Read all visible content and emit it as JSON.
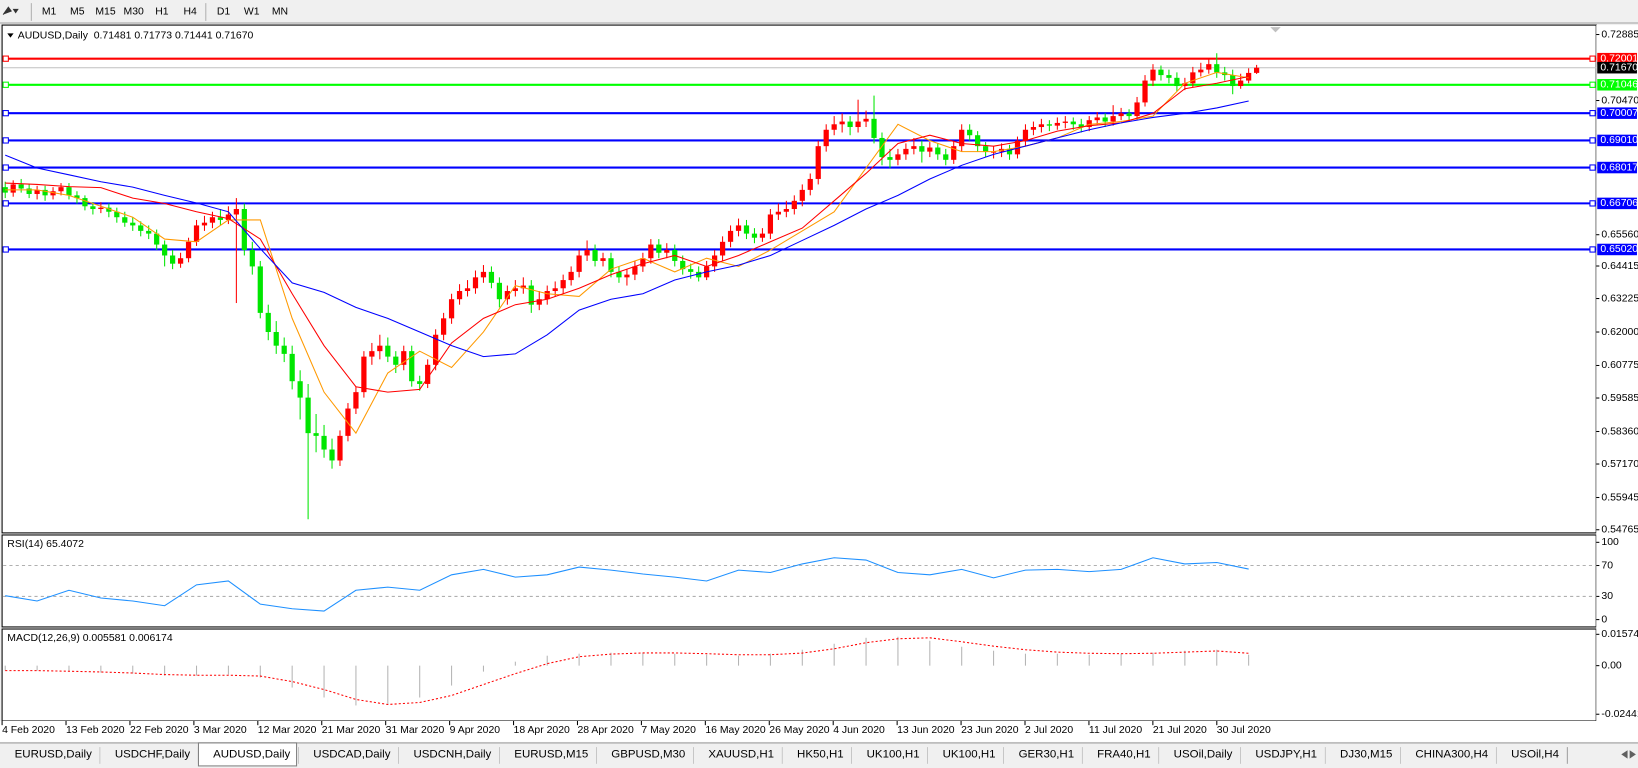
{
  "toolbar": {
    "timeframes": [
      "M1",
      "M5",
      "M15",
      "M30",
      "H1",
      "H4",
      "D1",
      "W1",
      "MN"
    ]
  },
  "chart_data": [
    {
      "type": "candlestick",
      "title": "AUDUSD,Daily  0.71481 0.71773 0.71441 0.71670",
      "up_color": "#ff0000",
      "down_color": "#00e600",
      "ylim": [
        0.5465,
        0.7323
      ],
      "yticks": [
        {
          "value": 0.72885,
          "label": "0.72885"
        },
        {
          "value": 0.7047,
          "label": "0.70470"
        },
        {
          "value": 0.6556,
          "label": "0.65560"
        },
        {
          "value": 0.64415,
          "label": "0.64415"
        },
        {
          "value": 0.63225,
          "label": "0.63225"
        },
        {
          "value": 0.62,
          "label": "0.62000"
        },
        {
          "value": 0.60775,
          "label": "0.60775"
        },
        {
          "value": 0.59585,
          "label": "0.59585"
        },
        {
          "value": 0.5836,
          "label": "0.58360"
        },
        {
          "value": 0.5717,
          "label": "0.57170"
        },
        {
          "value": 0.55945,
          "label": "0.55945"
        },
        {
          "value": 0.54765,
          "label": "0.54765"
        }
      ],
      "levels": [
        {
          "value": 0.72001,
          "label": "0.72001",
          "color": "#ff0000"
        },
        {
          "value": 0.71046,
          "label": "0.71046",
          "color": "#00ff00"
        },
        {
          "value": 0.70007,
          "label": "0.70007",
          "color": "#0000ff"
        },
        {
          "value": 0.6901,
          "label": "0.69010",
          "color": "#0000ff"
        },
        {
          "value": 0.68017,
          "label": "0.68017",
          "color": "#0000ff"
        },
        {
          "value": 0.66706,
          "label": "0.66706",
          "color": "#0000ff"
        },
        {
          "value": 0.6502,
          "label": "0.65020",
          "color": "#0000ff"
        }
      ],
      "last_price": {
        "value": 0.7167,
        "label": "0.71670"
      },
      "open": [
        0.673,
        0.671,
        0.674,
        0.6725,
        0.6705,
        0.672,
        0.67,
        0.6715,
        0.673,
        0.67,
        0.669,
        0.666,
        0.665,
        0.6655,
        0.664,
        0.662,
        0.66,
        0.659,
        0.657,
        0.656,
        0.652,
        0.648,
        0.645,
        0.647,
        0.653,
        0.659,
        0.66,
        0.662,
        0.661,
        0.663,
        0.665,
        0.65,
        0.644,
        0.627,
        0.62,
        0.615,
        0.612,
        0.602,
        0.596,
        0.583,
        0.582,
        0.577,
        0.573,
        0.582,
        0.592,
        0.598,
        0.611,
        0.613,
        0.615,
        0.611,
        0.608,
        0.613,
        0.602,
        0.601,
        0.608,
        0.619,
        0.625,
        0.632,
        0.635,
        0.636,
        0.64,
        0.642,
        0.638,
        0.632,
        0.635,
        0.636,
        0.637,
        0.63,
        0.632,
        0.635,
        0.636,
        0.639,
        0.642,
        0.648,
        0.65,
        0.646,
        0.647,
        0.642,
        0.64,
        0.641,
        0.644,
        0.647,
        0.652,
        0.649,
        0.65,
        0.646,
        0.643,
        0.642,
        0.64,
        0.644,
        0.648,
        0.653,
        0.657,
        0.659,
        0.656,
        0.6545,
        0.656,
        0.663,
        0.664,
        0.665,
        0.668,
        0.672,
        0.676,
        0.688,
        0.694,
        0.696,
        0.697,
        0.695,
        0.697,
        0.698,
        0.691,
        0.684,
        0.683,
        0.685,
        0.687,
        0.688,
        0.686,
        0.6875,
        0.685,
        0.683,
        0.688,
        0.694,
        0.692,
        0.688,
        0.686,
        0.686,
        0.687,
        0.685,
        0.69,
        0.694,
        0.695,
        0.696,
        0.6955,
        0.6965,
        0.697,
        0.696,
        0.695,
        0.6975,
        0.6985,
        0.697,
        0.699,
        0.7,
        0.699,
        0.704,
        0.712,
        0.716,
        0.714,
        0.713,
        0.71,
        0.711,
        0.715,
        0.716,
        0.718,
        0.715,
        0.714,
        0.71,
        0.712,
        0.71481
      ],
      "high": [
        0.675,
        0.6755,
        0.676,
        0.674,
        0.6735,
        0.6735,
        0.673,
        0.6745,
        0.6745,
        0.6715,
        0.67,
        0.6675,
        0.6675,
        0.667,
        0.6655,
        0.664,
        0.662,
        0.6605,
        0.659,
        0.6575,
        0.6535,
        0.65,
        0.649,
        0.6545,
        0.661,
        0.6625,
        0.664,
        0.665,
        0.666,
        0.669,
        0.667,
        0.653,
        0.646,
        0.63,
        0.624,
        0.618,
        0.615,
        0.606,
        0.601,
        0.59,
        0.586,
        0.581,
        0.584,
        0.594,
        0.6,
        0.613,
        0.616,
        0.619,
        0.618,
        0.613,
        0.615,
        0.615,
        0.604,
        0.61,
        0.621,
        0.627,
        0.634,
        0.6375,
        0.639,
        0.6425,
        0.6445,
        0.644,
        0.64,
        0.637,
        0.639,
        0.64,
        0.639,
        0.635,
        0.637,
        0.6385,
        0.641,
        0.644,
        0.65,
        0.6535,
        0.652,
        0.649,
        0.649,
        0.644,
        0.643,
        0.646,
        0.649,
        0.654,
        0.654,
        0.6525,
        0.652,
        0.648,
        0.645,
        0.644,
        0.646,
        0.65,
        0.655,
        0.659,
        0.6615,
        0.661,
        0.658,
        0.658,
        0.665,
        0.667,
        0.668,
        0.67,
        0.674,
        0.678,
        0.69,
        0.696,
        0.699,
        0.7,
        0.699,
        0.705,
        0.701,
        0.7065,
        0.693,
        0.687,
        0.687,
        0.689,
        0.691,
        0.69,
        0.6895,
        0.689,
        0.687,
        0.69,
        0.696,
        0.696,
        0.6935,
        0.6895,
        0.688,
        0.689,
        0.6885,
        0.6915,
        0.696,
        0.697,
        0.698,
        0.6975,
        0.6985,
        0.699,
        0.6985,
        0.698,
        0.699,
        0.7005,
        0.7,
        0.703,
        0.702,
        0.7015,
        0.706,
        0.714,
        0.718,
        0.7175,
        0.716,
        0.715,
        0.713,
        0.717,
        0.7185,
        0.72,
        0.722,
        0.717,
        0.716,
        0.7145,
        0.7165,
        0.71773
      ],
      "low": [
        0.669,
        0.6695,
        0.671,
        0.669,
        0.6685,
        0.668,
        0.6685,
        0.67,
        0.6685,
        0.667,
        0.6645,
        0.663,
        0.6635,
        0.662,
        0.66,
        0.6585,
        0.657,
        0.655,
        0.654,
        0.65,
        0.644,
        0.643,
        0.6435,
        0.6455,
        0.6515,
        0.657,
        0.658,
        0.659,
        0.6595,
        0.6306,
        0.648,
        0.641,
        0.625,
        0.617,
        0.612,
        0.609,
        0.599,
        0.588,
        0.5515,
        0.576,
        0.574,
        0.57,
        0.571,
        0.58,
        0.59,
        0.596,
        0.608,
        0.61,
        0.609,
        0.605,
        0.606,
        0.6,
        0.5985,
        0.5995,
        0.606,
        0.617,
        0.623,
        0.63,
        0.633,
        0.634,
        0.638,
        0.636,
        0.629,
        0.63,
        0.633,
        0.634,
        0.627,
        0.628,
        0.63,
        0.633,
        0.634,
        0.637,
        0.64,
        0.646,
        0.644,
        0.644,
        0.64,
        0.638,
        0.637,
        0.639,
        0.642,
        0.645,
        0.647,
        0.647,
        0.644,
        0.641,
        0.6395,
        0.6385,
        0.639,
        0.642,
        0.646,
        0.651,
        0.655,
        0.654,
        0.6525,
        0.653,
        0.654,
        0.661,
        0.662,
        0.663,
        0.666,
        0.67,
        0.674,
        0.686,
        0.692,
        0.693,
        0.692,
        0.693,
        0.695,
        0.689,
        0.681,
        0.68,
        0.681,
        0.683,
        0.685,
        0.682,
        0.684,
        0.683,
        0.681,
        0.6815,
        0.686,
        0.69,
        0.686,
        0.684,
        0.6835,
        0.684,
        0.683,
        0.6835,
        0.688,
        0.692,
        0.693,
        0.6935,
        0.694,
        0.6945,
        0.694,
        0.693,
        0.6935,
        0.696,
        0.695,
        0.6955,
        0.6975,
        0.697,
        0.6975,
        0.7025,
        0.71,
        0.712,
        0.711,
        0.708,
        0.7085,
        0.7095,
        0.7135,
        0.7145,
        0.713,
        0.712,
        0.707,
        0.709,
        0.711,
        0.71441
      ],
      "close": [
        0.671,
        0.674,
        0.6725,
        0.6705,
        0.672,
        0.67,
        0.6715,
        0.673,
        0.67,
        0.669,
        0.666,
        0.665,
        0.6655,
        0.664,
        0.662,
        0.66,
        0.659,
        0.657,
        0.656,
        0.652,
        0.648,
        0.645,
        0.647,
        0.653,
        0.659,
        0.66,
        0.662,
        0.661,
        0.663,
        0.665,
        0.65,
        0.644,
        0.627,
        0.62,
        0.615,
        0.612,
        0.602,
        0.596,
        0.583,
        0.582,
        0.577,
        0.573,
        0.582,
        0.592,
        0.598,
        0.611,
        0.613,
        0.615,
        0.611,
        0.608,
        0.613,
        0.602,
        0.601,
        0.608,
        0.619,
        0.625,
        0.632,
        0.635,
        0.636,
        0.64,
        0.642,
        0.638,
        0.632,
        0.635,
        0.636,
        0.637,
        0.63,
        0.632,
        0.635,
        0.636,
        0.639,
        0.642,
        0.648,
        0.65,
        0.646,
        0.647,
        0.642,
        0.64,
        0.641,
        0.644,
        0.647,
        0.652,
        0.649,
        0.65,
        0.646,
        0.643,
        0.642,
        0.64,
        0.644,
        0.648,
        0.653,
        0.657,
        0.659,
        0.656,
        0.6545,
        0.656,
        0.663,
        0.664,
        0.665,
        0.668,
        0.672,
        0.676,
        0.688,
        0.694,
        0.696,
        0.697,
        0.695,
        0.697,
        0.698,
        0.691,
        0.684,
        0.683,
        0.685,
        0.687,
        0.688,
        0.686,
        0.6875,
        0.685,
        0.683,
        0.688,
        0.694,
        0.692,
        0.688,
        0.686,
        0.686,
        0.687,
        0.685,
        0.69,
        0.694,
        0.695,
        0.696,
        0.6955,
        0.6965,
        0.697,
        0.696,
        0.695,
        0.6975,
        0.6985,
        0.697,
        0.699,
        0.7,
        0.699,
        0.704,
        0.712,
        0.716,
        0.714,
        0.713,
        0.71,
        0.711,
        0.715,
        0.716,
        0.718,
        0.715,
        0.714,
        0.71,
        0.712,
        0.7148,
        0.7167
      ],
      "series": [
        {
          "color": "#ff9900",
          "values": [
            0.672,
            0.672,
            0.67,
            0.666,
            0.662,
            0.654,
            0.653,
            0.661,
            0.661,
            0.625,
            0.598,
            0.583,
            0.605,
            0.613,
            0.607,
            0.62,
            0.637,
            0.634,
            0.633,
            0.643,
            0.647,
            0.642,
            0.647,
            0.644,
            0.65,
            0.657,
            0.664,
            0.68,
            0.696,
            0.69,
            0.686,
            0.686,
            0.688,
            0.691,
            0.696,
            0.697,
            0.699,
            0.711,
            0.715,
            0.713
          ]
        },
        {
          "color": "#ff0000",
          "values": [
            0.6745,
            0.674,
            0.6732,
            0.6728,
            0.669,
            0.667,
            0.664,
            0.6615,
            0.654,
            0.634,
            0.615,
            0.6,
            0.598,
            0.599,
            0.616,
            0.625,
            0.63,
            0.632,
            0.636,
            0.641,
            0.645,
            0.648,
            0.644,
            0.648,
            0.653,
            0.658,
            0.668,
            0.678,
            0.689,
            0.692,
            0.689,
            0.688,
            0.69,
            0.6935,
            0.6955,
            0.6965,
            0.7,
            0.709,
            0.711,
            0.7135
          ]
        },
        {
          "color": "#0000ff",
          "values": [
            0.6847,
            0.68,
            0.6775,
            0.675,
            0.673,
            0.67,
            0.6672,
            0.664,
            0.6505,
            0.638,
            0.6345,
            0.629,
            0.625,
            0.62,
            0.615,
            0.611,
            0.612,
            0.619,
            0.628,
            0.632,
            0.634,
            0.639,
            0.642,
            0.6445,
            0.648,
            0.6535,
            0.659,
            0.665,
            0.67,
            0.676,
            0.681,
            0.685,
            0.688,
            0.691,
            0.694,
            0.6965,
            0.6985,
            0.7,
            0.702,
            0.7045
          ]
        }
      ]
    },
    {
      "type": "line",
      "title": "RSI(14) 65.4072",
      "ylim": [
        -9.5,
        109.5
      ],
      "yticks": [
        100,
        70,
        30,
        0
      ],
      "dashed_levels": [
        70,
        30
      ],
      "series": [
        {
          "color": "#1e90ff",
          "values": [
            31,
            24,
            38,
            28,
            24,
            18,
            45,
            50,
            20,
            14,
            11,
            38,
            42,
            38,
            58,
            65,
            55,
            58,
            68,
            64,
            59,
            55,
            50,
            64,
            61,
            72,
            80,
            77,
            61,
            58,
            65,
            54,
            64,
            65,
            62,
            65,
            80,
            72,
            74,
            65.4
          ]
        }
      ]
    },
    {
      "type": "macd",
      "title": "MACD(12,26,9) 0.005581 0.006174",
      "ylim": [
        -0.0278,
        0.0184
      ],
      "yticks": [
        0.015741,
        {
          "value": 0,
          "label": "0.00"
        },
        -0.024412
      ],
      "histogram": {
        "color": "#b4b4b4",
        "values": [
          -0.0025,
          -0.0025,
          -0.003,
          -0.0035,
          -0.004,
          -0.005,
          -0.005,
          -0.0045,
          -0.006,
          -0.011,
          -0.016,
          -0.02,
          -0.0195,
          -0.016,
          -0.01,
          -0.003,
          0.002,
          0.005,
          0.006,
          0.0065,
          0.0065,
          0.006,
          0.0055,
          0.005,
          0.006,
          0.008,
          0.011,
          0.014,
          0.0145,
          0.0125,
          0.0095,
          0.0075,
          0.006,
          0.006,
          0.0055,
          0.006,
          0.0065,
          0.0075,
          0.008,
          0.0055
        ]
      },
      "signal": {
        "color": "#ff0000",
        "values": [
          -0.0025,
          -0.0025,
          -0.0028,
          -0.0032,
          -0.0037,
          -0.0045,
          -0.0048,
          -0.0048,
          -0.0052,
          -0.008,
          -0.012,
          -0.017,
          -0.0195,
          -0.0185,
          -0.015,
          -0.0095,
          -0.004,
          0.001,
          0.0045,
          0.0058,
          0.0064,
          0.0064,
          0.006,
          0.0055,
          0.0055,
          0.0063,
          0.0085,
          0.0115,
          0.0135,
          0.014,
          0.012,
          0.0098,
          0.008,
          0.0068,
          0.0062,
          0.006,
          0.0062,
          0.0068,
          0.0074,
          0.0062
        ]
      }
    }
  ],
  "time_axis": [
    "4 Feb 2020",
    "13 Feb 2020",
    "22 Feb 2020",
    "3 Mar 2020",
    "12 Mar 2020",
    "21 Mar 2020",
    "31 Mar 2020",
    "9 Apr 2020",
    "18 Apr 2020",
    "28 Apr 2020",
    "7 May 2020",
    "16 May 2020",
    "26 May 2020",
    "4 Jun 2020",
    "13 Jun 2020",
    "23 Jun 2020",
    "2 Jul 2020",
    "11 Jul 2020",
    "21 Jul 2020",
    "30 Jul 2020"
  ],
  "tabs": [
    "EURUSD,Daily",
    "USDCHF,Daily",
    "AUDUSD,Daily",
    "USDCAD,Daily",
    "USDCNH,Daily",
    "EURUSD,M15",
    "GBPUSD,M30",
    "XAUUSD,H1",
    "HK50,H1",
    "UK100,H1",
    "UK100,H1",
    "GER30,H1",
    "FRA40,H1",
    "USOil,Daily",
    "USDJPY,H1",
    "DJ30,M15",
    "CHINA300,H4",
    "USOil,H4"
  ],
  "active_tab": 2
}
